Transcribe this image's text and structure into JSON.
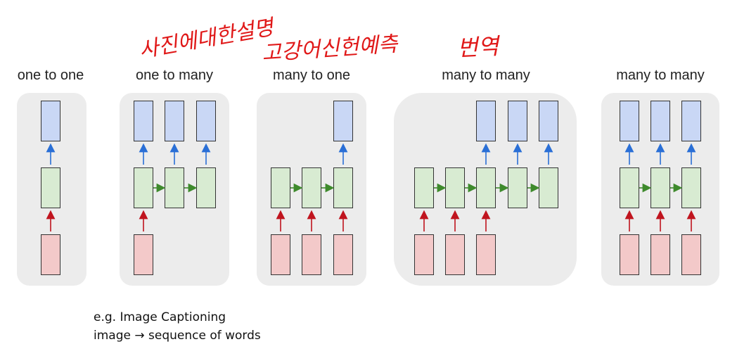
{
  "diagrams": [
    {
      "id": "one-to-one",
      "title": "one to one"
    },
    {
      "id": "one-to-many",
      "title": "one to many"
    },
    {
      "id": "many-to-one",
      "title": "many to one"
    },
    {
      "id": "many-to-many-delayed",
      "title": "many to many"
    },
    {
      "id": "many-to-many-synced",
      "title": "many to many"
    }
  ],
  "caption": {
    "line1": "e.g. Image Captioning",
    "line2": "image → sequence of words"
  },
  "handwritten": {
    "note1": "사진에대한설명",
    "note2": "고강어신헌예측",
    "note3": "번역"
  },
  "colors": {
    "output": "#c9d7f5",
    "hidden": "#d8ebd2",
    "input": "#f3c9c9",
    "arrow_up_output": "#2a6fd6",
    "arrow_up_input": "#c0141e",
    "arrow_right": "#3e8a2c",
    "annotation": "#e01818"
  }
}
